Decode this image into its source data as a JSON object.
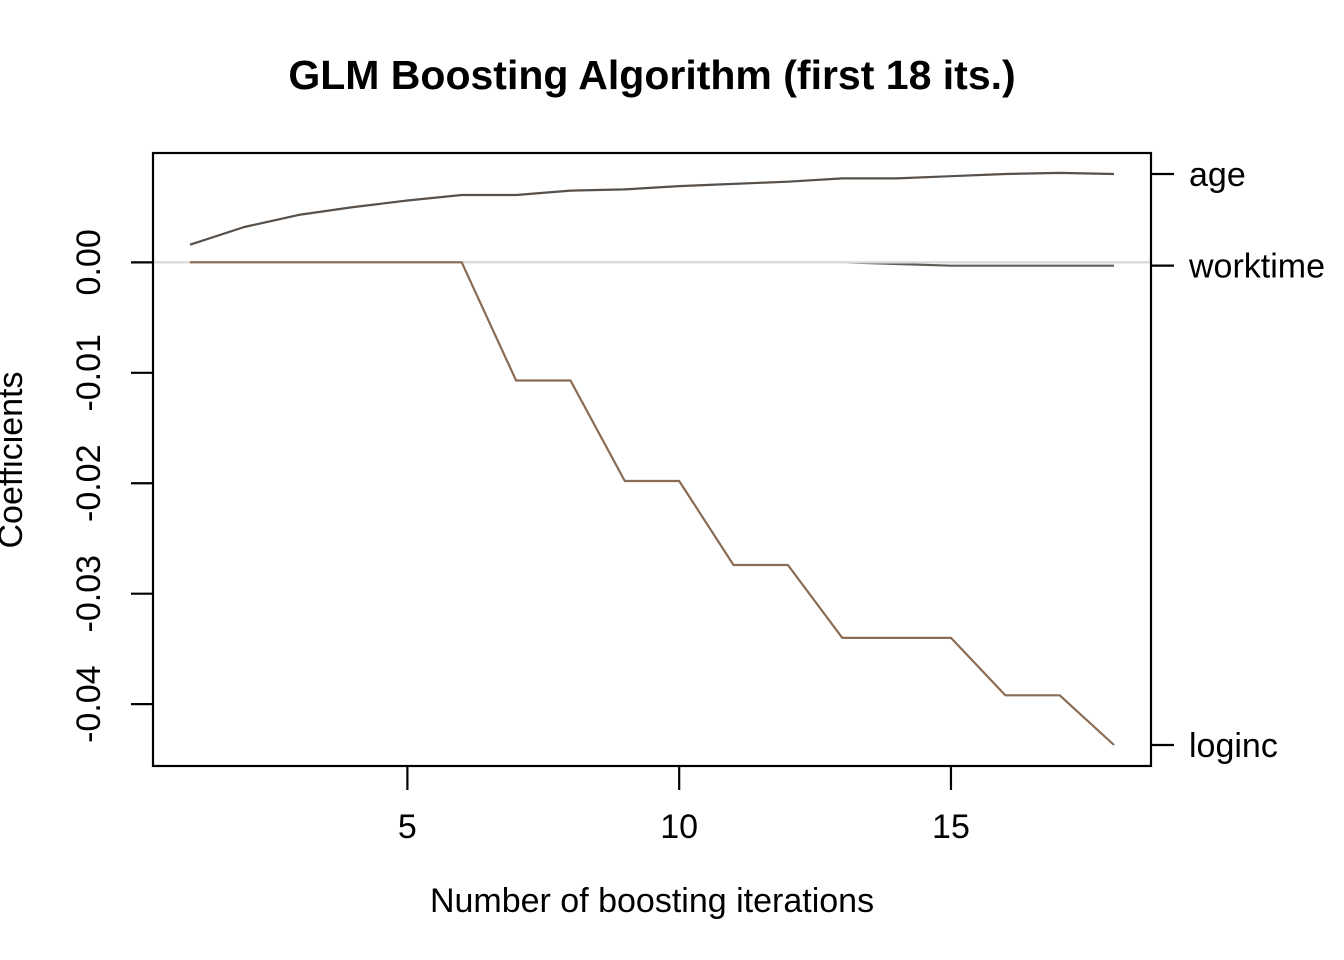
{
  "chart_data": {
    "type": "line",
    "title": "GLM Boosting Algorithm (first 18 its.)",
    "xlabel": "Number of boosting iterations",
    "ylabel": "Coefficients",
    "x": [
      1,
      2,
      3,
      4,
      5,
      6,
      7,
      8,
      9,
      10,
      11,
      12,
      13,
      14,
      15,
      16,
      17,
      18
    ],
    "series": [
      {
        "name": "age",
        "color": "#57504b",
        "values": [
          0.0016,
          0.0032,
          0.0043,
          0.005,
          0.0056,
          0.0061,
          0.0061,
          0.0065,
          0.0066,
          0.0069,
          0.0071,
          0.0073,
          0.0076,
          0.0076,
          0.0078,
          0.008,
          0.0081,
          0.008
        ]
      },
      {
        "name": "worktime",
        "color": "#635d58",
        "values": [
          0,
          0,
          0,
          0,
          0,
          0,
          0,
          0,
          0,
          0,
          0,
          0,
          0,
          -0.00015,
          -0.0003,
          -0.0003,
          -0.0003,
          -0.0003
        ]
      },
      {
        "name": "loginc",
        "color": "#8a6b53",
        "values": [
          0,
          0,
          0,
          0,
          0,
          0,
          -0.0107,
          -0.0107,
          -0.0198,
          -0.0198,
          -0.0274,
          -0.0274,
          -0.034,
          -0.034,
          -0.034,
          -0.0392,
          -0.0392,
          -0.0437
        ]
      }
    ],
    "xticks": {
      "values": [
        5,
        10,
        15
      ],
      "labels": [
        "5",
        "10",
        "15"
      ]
    },
    "yticks": {
      "values": [
        0,
        -0.01,
        -0.02,
        -0.03,
        -0.04
      ],
      "labels": [
        "0.00",
        "-0.01",
        "-0.02",
        "-0.03",
        "-0.04"
      ]
    },
    "xlim": [
      0.32,
      18.68
    ],
    "ylim": [
      -0.0456,
      0.0099
    ],
    "zero_line": {
      "y": 0,
      "color": "#dbdbdb"
    },
    "right_labels": [
      "age",
      "worktime",
      "loginc"
    ],
    "axis_color": "#000000",
    "background": "#ffffff",
    "grid": false,
    "legend_position": "right-margin"
  }
}
